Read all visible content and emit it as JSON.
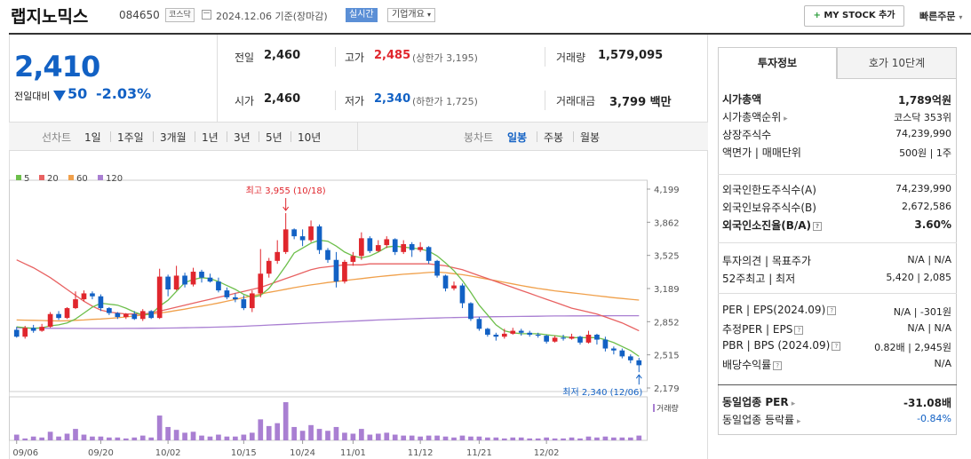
{
  "header": {
    "name": "랩지노믹스",
    "code": "084650",
    "market": "코스닥",
    "date": "2024.12.06",
    "basis": "기준(장마감)",
    "realtime": "실시간",
    "corp_info": "기업개요",
    "mystock": "MY STOCK 추가",
    "quick_order": "빠른주문"
  },
  "price": {
    "current": "2,410",
    "change_label": "전일대비",
    "change": "50",
    "change_pct": "-2.03%"
  },
  "summary": {
    "prev_label": "전일",
    "prev": "2,460",
    "high_label": "고가",
    "high": "2,485",
    "upper_limit": "(상한가 3,195)",
    "volume_label": "거래량",
    "volume": "1,579,095",
    "open_label": "시가",
    "open": "2,460",
    "low_label": "저가",
    "low": "2,340",
    "lower_limit": "(하한가 1,725)",
    "amount_label": "거래대금",
    "amount": "3,799",
    "amount_unit": "백만"
  },
  "period_bar": {
    "line_label": "선차트",
    "periods": [
      "1일",
      "1주일",
      "3개월",
      "1년",
      "3년",
      "5년",
      "10년"
    ],
    "candle_label": "봉차트",
    "candle": [
      "일봉",
      "주봉",
      "월봉"
    ],
    "active": "일봉"
  },
  "colors": {
    "up": "#e0262d",
    "down": "#1261c4",
    "ma5": "#6dbf4b",
    "ma20": "#e86262",
    "ma60": "#f0a04b",
    "ma120": "#a97fd2"
  },
  "chart_data": {
    "type": "candlestick",
    "legend": [
      "5",
      "20",
      "60",
      "120"
    ],
    "y_ticks": [
      "4,199",
      "3,862",
      "3,525",
      "3,189",
      "2,852",
      "2,515",
      "2,179"
    ],
    "ylim": [
      2179,
      4199
    ],
    "x_ticks": [
      "09/06",
      "09/20",
      "10/02",
      "10/15",
      "10/24",
      "11/01",
      "11/12",
      "11/21",
      "12/02"
    ],
    "max_label": "최고 3,955 (10/18)",
    "min_label": "최저 2,340 (12/06)",
    "volume_label": "거래량",
    "candles": [
      [
        2770,
        2700,
        2800,
        2690
      ],
      [
        2700,
        2790,
        2810,
        2680
      ],
      [
        2790,
        2760,
        2820,
        2740
      ],
      [
        2760,
        2800,
        2830,
        2750
      ],
      [
        2800,
        2930,
        2950,
        2790
      ],
      [
        2930,
        2890,
        2960,
        2870
      ],
      [
        2890,
        2990,
        3000,
        2880
      ],
      [
        2990,
        3080,
        3160,
        2980
      ],
      [
        3080,
        3140,
        3170,
        3060
      ],
      [
        3140,
        3110,
        3160,
        3080
      ],
      [
        3110,
        2990,
        3130,
        2960
      ],
      [
        2990,
        2940,
        3000,
        2920
      ],
      [
        2940,
        2900,
        2950,
        2880
      ],
      [
        2900,
        2930,
        2940,
        2880
      ],
      [
        2930,
        2880,
        2960,
        2870
      ],
      [
        2880,
        2960,
        2980,
        2860
      ],
      [
        2960,
        2890,
        2970,
        2880
      ],
      [
        2890,
        3310,
        3390,
        2880
      ],
      [
        3310,
        3180,
        3330,
        3110
      ],
      [
        3180,
        3320,
        3420,
        3170
      ],
      [
        3320,
        3230,
        3350,
        3200
      ],
      [
        3230,
        3360,
        3400,
        3210
      ],
      [
        3360,
        3300,
        3380,
        3250
      ],
      [
        3300,
        3260,
        3340,
        3250
      ],
      [
        3260,
        3170,
        3300,
        3150
      ],
      [
        3170,
        3100,
        3200,
        3080
      ],
      [
        3100,
        3080,
        3140,
        3050
      ],
      [
        3080,
        2990,
        3120,
        2970
      ],
      [
        2990,
        3140,
        3170,
        2950
      ],
      [
        3140,
        3340,
        3590,
        3100
      ],
      [
        3340,
        3470,
        3500,
        3300
      ],
      [
        3470,
        3560,
        3680,
        3440
      ],
      [
        3560,
        3790,
        3955,
        3540
      ],
      [
        3790,
        3720,
        3800,
        3690
      ],
      [
        3720,
        3680,
        3790,
        3620
      ],
      [
        3680,
        3820,
        3880,
        3660
      ],
      [
        3820,
        3580,
        3840,
        3540
      ],
      [
        3580,
        3480,
        3600,
        3450
      ],
      [
        3480,
        3260,
        3560,
        3200
      ],
      [
        3260,
        3460,
        3480,
        3240
      ],
      [
        3460,
        3520,
        3560,
        3420
      ],
      [
        3520,
        3700,
        3760,
        3480
      ],
      [
        3700,
        3570,
        3720,
        3550
      ],
      [
        3570,
        3630,
        3680,
        3560
      ],
      [
        3630,
        3690,
        3720,
        3600
      ],
      [
        3690,
        3560,
        3700,
        3530
      ],
      [
        3560,
        3640,
        3680,
        3540
      ],
      [
        3640,
        3580,
        3660,
        3510
      ],
      [
        3580,
        3610,
        3660,
        3560
      ],
      [
        3610,
        3470,
        3620,
        3440
      ],
      [
        3470,
        3320,
        3480,
        3300
      ],
      [
        3320,
        3190,
        3330,
        3160
      ],
      [
        3190,
        3220,
        3260,
        3170
      ],
      [
        3220,
        3040,
        3240,
        2990
      ],
      [
        3040,
        2880,
        3050,
        2860
      ],
      [
        2880,
        2780,
        2900,
        2760
      ],
      [
        2780,
        2720,
        2790,
        2700
      ],
      [
        2720,
        2700,
        2740,
        2660
      ],
      [
        2700,
        2730,
        2780,
        2680
      ],
      [
        2730,
        2760,
        2790,
        2720
      ],
      [
        2760,
        2740,
        2780,
        2710
      ],
      [
        2740,
        2720,
        2760,
        2700
      ],
      [
        2720,
        2710,
        2740,
        2690
      ],
      [
        2710,
        2650,
        2720,
        2630
      ],
      [
        2650,
        2690,
        2710,
        2640
      ],
      [
        2690,
        2680,
        2720,
        2660
      ],
      [
        2680,
        2700,
        2730,
        2670
      ],
      [
        2700,
        2640,
        2710,
        2620
      ],
      [
        2640,
        2720,
        2760,
        2630
      ],
      [
        2720,
        2670,
        2730,
        2620
      ],
      [
        2670,
        2580,
        2700,
        2550
      ],
      [
        2580,
        2560,
        2600,
        2520
      ],
      [
        2560,
        2500,
        2580,
        2480
      ],
      [
        2500,
        2460,
        2520,
        2430
      ],
      [
        2460,
        2410,
        2485,
        2340
      ]
    ],
    "volumes": [
      6,
      2,
      4,
      3,
      9,
      4,
      7,
      12,
      6,
      4,
      4,
      3,
      3,
      2,
      3,
      5,
      3,
      26,
      14,
      11,
      8,
      9,
      5,
      4,
      6,
      4,
      4,
      6,
      8,
      22,
      15,
      18,
      40,
      14,
      10,
      16,
      12,
      10,
      14,
      8,
      7,
      12,
      6,
      7,
      8,
      6,
      5,
      5,
      4,
      5,
      5,
      4,
      3,
      5,
      4,
      4,
      3,
      3,
      2,
      3,
      3,
      2,
      2,
      3,
      2,
      2,
      3,
      2,
      4,
      3,
      4,
      3,
      3,
      3,
      5
    ],
    "ma5": [
      2800,
      2790,
      2785,
      2790,
      2810,
      2820,
      2840,
      2880,
      2940,
      3000,
      3040,
      3030,
      3020,
      2990,
      2950,
      2920,
      2930,
      3010,
      3070,
      3160,
      3250,
      3280,
      3300,
      3290,
      3260,
      3220,
      3180,
      3130,
      3100,
      3120,
      3190,
      3300,
      3420,
      3550,
      3600,
      3650,
      3680,
      3670,
      3620,
      3560,
      3520,
      3500,
      3520,
      3560,
      3610,
      3620,
      3610,
      3600,
      3590,
      3570,
      3520,
      3450,
      3370,
      3270,
      3150,
      3020,
      2920,
      2820,
      2760,
      2740,
      2730,
      2730,
      2730,
      2720,
      2710,
      2700,
      2690,
      2690,
      2690,
      2690,
      2670,
      2640,
      2600,
      2560,
      2500
    ],
    "ma20": [
      3480,
      3440,
      3400,
      3350,
      3300,
      3240,
      3180,
      3120,
      3060,
      3010,
      2970,
      2950,
      2940,
      2930,
      2930,
      2930,
      2940,
      2960,
      2980,
      3000,
      3020,
      3040,
      3060,
      3080,
      3100,
      3120,
      3140,
      3160,
      3180,
      3200,
      3230,
      3260,
      3290,
      3320,
      3350,
      3380,
      3400,
      3410,
      3420,
      3430,
      3430,
      3430,
      3440,
      3440,
      3440,
      3440,
      3440,
      3440,
      3440,
      3440,
      3430,
      3420,
      3400,
      3380,
      3350,
      3320,
      3290,
      3260,
      3230,
      3200,
      3170,
      3140,
      3110,
      3080,
      3050,
      3020,
      2990,
      2970,
      2950,
      2930,
      2900,
      2870,
      2840,
      2800,
      2760
    ],
    "ma60": [
      2870,
      2868,
      2866,
      2864,
      2862,
      2860,
      2862,
      2866,
      2870,
      2876,
      2880,
      2886,
      2892,
      2900,
      2910,
      2920,
      2930,
      2940,
      2952,
      2966,
      2980,
      2996,
      3010,
      3026,
      3042,
      3060,
      3078,
      3096,
      3114,
      3132,
      3150,
      3166,
      3182,
      3198,
      3212,
      3226,
      3238,
      3250,
      3260,
      3270,
      3280,
      3290,
      3300,
      3310,
      3318,
      3326,
      3334,
      3340,
      3346,
      3352,
      3356,
      3350,
      3340,
      3330,
      3316,
      3300,
      3284,
      3268,
      3252,
      3236,
      3220,
      3204,
      3190,
      3178,
      3166,
      3156,
      3146,
      3136,
      3126,
      3116,
      3106,
      3096,
      3088,
      3080,
      3072
    ],
    "ma120": [
      2790,
      2788,
      2787,
      2786,
      2785,
      2785,
      2784,
      2784,
      2783,
      2783,
      2783,
      2783,
      2783,
      2784,
      2784,
      2785,
      2786,
      2787,
      2788,
      2789,
      2790,
      2792,
      2794,
      2796,
      2798,
      2800,
      2803,
      2806,
      2810,
      2814,
      2818,
      2822,
      2826,
      2830,
      2834,
      2838,
      2842,
      2846,
      2850,
      2854,
      2858,
      2862,
      2866,
      2870,
      2873,
      2876,
      2879,
      2882,
      2885,
      2888,
      2890,
      2892,
      2894,
      2896,
      2898,
      2900,
      2902,
      2903,
      2904,
      2905,
      2906,
      2907,
      2908,
      2909,
      2910,
      2910,
      2911,
      2911,
      2912,
      2912,
      2912,
      2913,
      2913,
      2913,
      2913
    ]
  },
  "info_panel": {
    "tab_invest": "투자정보",
    "tab_orderbook": "호가 10단계",
    "rows_a": [
      {
        "label": "시가총액",
        "value": "1,789억원",
        "bold": true
      },
      {
        "label": "시가총액순위",
        "value": "코스닥 353위",
        "arrow": true
      },
      {
        "label": "상장주식수",
        "value": "74,239,990"
      },
      {
        "label": "액면가 | 매매단위",
        "value": "500원 | 1주"
      }
    ],
    "rows_b": [
      {
        "label": "외국인한도주식수(A)",
        "value": "74,239,990"
      },
      {
        "label": "외국인보유주식수(B)",
        "value": "2,672,586"
      },
      {
        "label": "외국인소진율(B/A)",
        "value": "3.60%",
        "bold": true,
        "q": true
      }
    ],
    "rows_c": [
      {
        "label": "투자의견 | 목표주가",
        "value": "N/A | N/A"
      },
      {
        "label": "52주최고 | 최저",
        "value": "5,420 | 2,085"
      }
    ],
    "rows_d": [
      {
        "label": "PER | EPS(2024.09)",
        "value": "N/A | -301원",
        "q": true
      },
      {
        "label": "추정PER | EPS",
        "value": "N/A | N/A",
        "q": true
      },
      {
        "label": "PBR | BPS (2024.09)",
        "value": "0.82배 | 2,945원",
        "q": true
      },
      {
        "label": "배당수익률",
        "value": "N/A",
        "q": true
      }
    ],
    "rows_e": [
      {
        "label": "동일업종 PER",
        "value": "-31.08배",
        "bold": true,
        "arrow": true
      },
      {
        "label": "동일업종 등락률",
        "value": "-0.84%",
        "blue": true,
        "arrow": true
      }
    ]
  }
}
